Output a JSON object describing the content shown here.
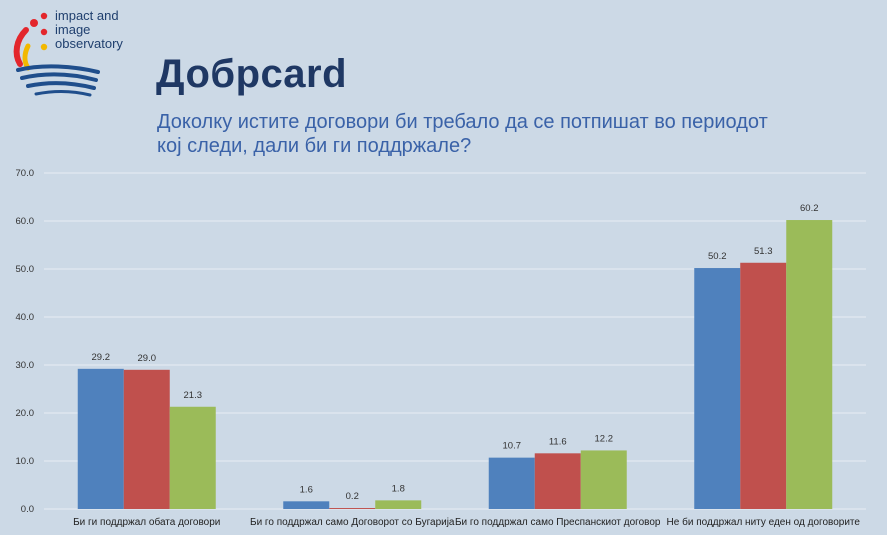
{
  "logo": {
    "line1": "impact and",
    "line2": "image",
    "line3": "observatory"
  },
  "header": {
    "title": "Добрcard",
    "subtitle": "Доколку истите договори би требало да се потпишат во периодот кој следи, дали би ги поддржале?"
  },
  "colors": {
    "background": "#ccd9e6",
    "series": [
      "#4f81bd",
      "#c0504d",
      "#9bbb59"
    ],
    "grid": "#e7edf4",
    "text": "#333333"
  },
  "chart_data": {
    "type": "bar",
    "categories": [
      "Би ги поддржал обата договори",
      "Би го поддржал само Договорот со Бугарија",
      "Би го поддржал само Преспанскиот договор",
      "Не би поддржал ниту еден од договорите"
    ],
    "series": [
      {
        "values": [
          29.2,
          1.6,
          10.7,
          50.2
        ]
      },
      {
        "values": [
          29.0,
          0.2,
          11.6,
          51.3
        ]
      },
      {
        "values": [
          21.3,
          1.8,
          12.2,
          60.2
        ]
      }
    ],
    "yticks": [
      "0.0",
      "10.0",
      "20.0",
      "30.0",
      "40.0",
      "50.0",
      "60.0",
      "70.0"
    ],
    "ylim": [
      0,
      70
    ],
    "grid": true
  }
}
